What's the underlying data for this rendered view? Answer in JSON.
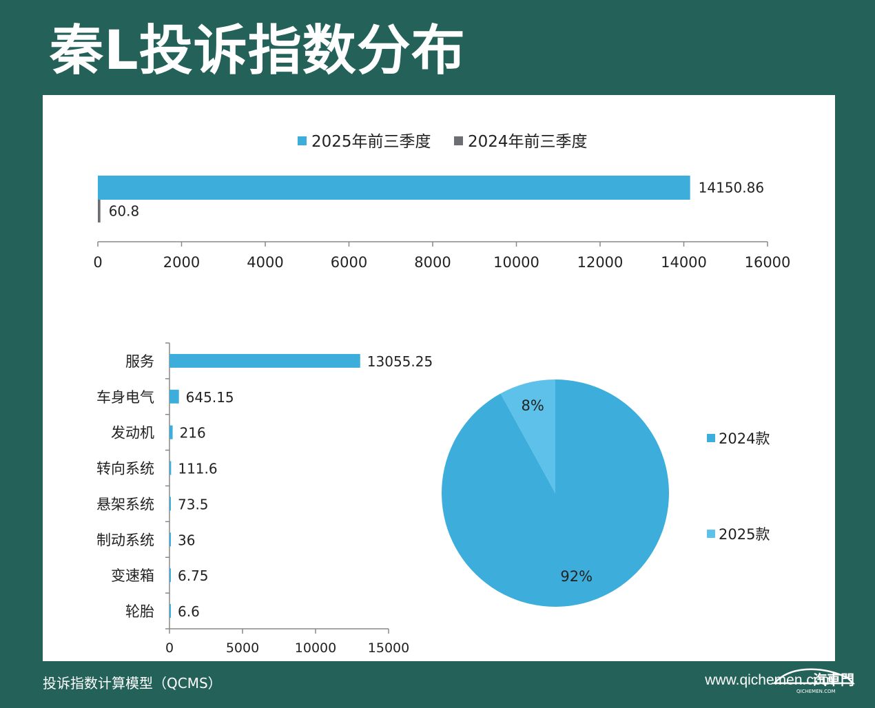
{
  "title": "秦L投诉指数分布",
  "footer": {
    "model_name": "投诉指数计算模型（QCMS）",
    "url": "www.qichemen.com",
    "logo_text": "汽車門",
    "logo_subtext": "QICHEMEN.COM"
  },
  "colors": {
    "background": "#246259",
    "bar_blue": "#3daedb",
    "bar_gray": "#6b6e73",
    "pie_light": "#5dc1e9",
    "axis": "#888888"
  },
  "chart_data": [
    {
      "type": "bar",
      "orientation": "horizontal",
      "series": [
        {
          "name": "2025年前三季度",
          "values": [
            14150.86
          ],
          "color": "#3daedb"
        },
        {
          "name": "2024年前三季度",
          "values": [
            60.8
          ],
          "color": "#6b6e73"
        }
      ],
      "xlim": [
        0,
        16000
      ],
      "x_ticks": [
        0,
        2000,
        4000,
        6000,
        8000,
        10000,
        12000,
        14000,
        16000
      ],
      "legend_position": "top",
      "grid": false
    },
    {
      "type": "bar",
      "orientation": "horizontal",
      "categories": [
        "服务",
        "车身电气",
        "发动机",
        "转向系统",
        "悬架系统",
        "制动系统",
        "变速箱",
        "轮胎"
      ],
      "values": [
        13055.25,
        645.15,
        216,
        111.6,
        73.5,
        36,
        6.75,
        6.6
      ],
      "value_labels": [
        "13055.25",
        "645.15",
        "216",
        "111.6",
        "73.5",
        "36",
        "6.75",
        "6.6"
      ],
      "xlim": [
        0,
        15000
      ],
      "x_ticks": [
        0,
        5000,
        10000,
        15000
      ],
      "color": "#3daedb",
      "grid": false
    },
    {
      "type": "pie",
      "slices": [
        {
          "label": "2024款",
          "value": 92,
          "display": "92%",
          "color": "#3daedb"
        },
        {
          "label": "2025款",
          "value": 8,
          "display": "8%",
          "color": "#5dc1e9"
        }
      ],
      "legend_position": "right"
    }
  ]
}
